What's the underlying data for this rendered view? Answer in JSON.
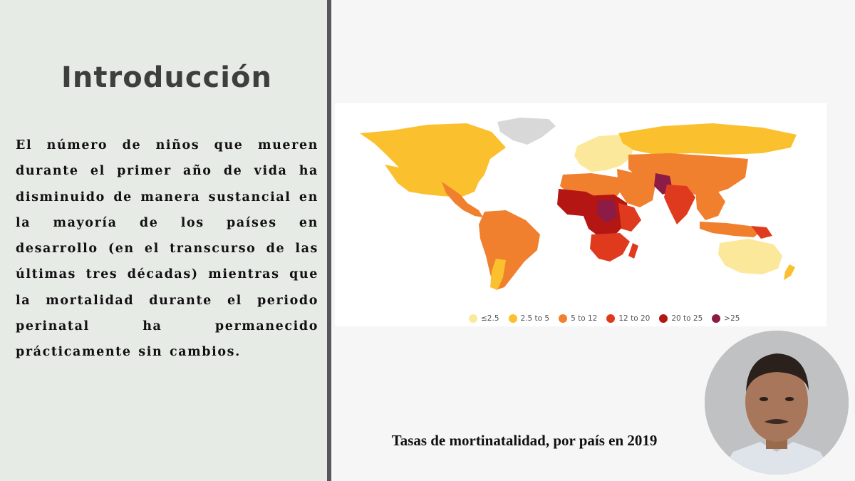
{
  "slide": {
    "title": "Introducción",
    "body": "El número de niños que mueren durante el primer año de vida ha disminuido de manera sustancial en la mayoría de los países en desarrollo (en el transcurso de las últimas tres décadas) mientras que la mortalidad durante el periodo perinatal ha permanecido prácticamente sin cambios.",
    "caption": "Tasas de mortinatalidad, por país en 2019"
  },
  "map": {
    "legend": [
      {
        "label": "≤2.5",
        "color": "#fce89a"
      },
      {
        "label": "2.5 to 5",
        "color": "#fbc02d"
      },
      {
        "label": "5 to 12",
        "color": "#f0802e"
      },
      {
        "label": "12 to 20",
        "color": "#e03a1e"
      },
      {
        "label": "20 to 25",
        "color": "#b41614"
      },
      {
        "label": ">25",
        "color": "#8c1b46"
      }
    ],
    "no_data_color": "#d8d8d8"
  },
  "webcam": {
    "icon": "presenter-webcam"
  }
}
